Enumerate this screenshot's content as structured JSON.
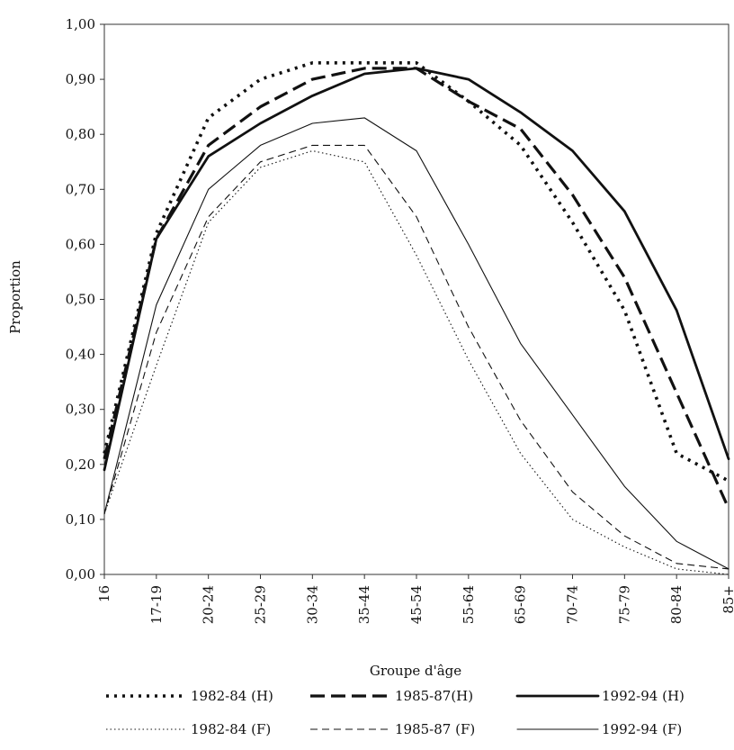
{
  "chart_data": {
    "type": "line",
    "title": "",
    "xlabel": "Groupe d'âge",
    "ylabel": "Proportion",
    "categories": [
      "16",
      "17-19",
      "20-24",
      "25-29",
      "30-34",
      "35-44",
      "45-54",
      "55-64",
      "65-69",
      "70-74",
      "75-79",
      "80-84",
      "85+"
    ],
    "ylim": [
      0,
      1
    ],
    "yticks": [
      "0,00",
      "0,10",
      "0,20",
      "0,30",
      "0,40",
      "0,50",
      "0,60",
      "0,70",
      "0,80",
      "0,90",
      "1,00"
    ],
    "grid": false,
    "legend_position": "bottom",
    "series": [
      {
        "name": "1982-84 (H)",
        "dash": "dotted-thick",
        "values": [
          0.22,
          0.62,
          0.83,
          0.9,
          0.93,
          0.93,
          0.93,
          0.86,
          0.78,
          0.64,
          0.48,
          0.22,
          0.17
        ]
      },
      {
        "name": "1985-87(H)",
        "dash": "dashed-thick",
        "values": [
          0.21,
          0.61,
          0.78,
          0.85,
          0.9,
          0.92,
          0.92,
          0.86,
          0.81,
          0.69,
          0.54,
          0.33,
          0.12
        ]
      },
      {
        "name": "1992-94 (H)",
        "dash": "solid-thick",
        "values": [
          0.19,
          0.61,
          0.76,
          0.82,
          0.87,
          0.91,
          0.92,
          0.9,
          0.84,
          0.77,
          0.66,
          0.48,
          0.21
        ]
      },
      {
        "name": "1982-84 (F)",
        "dash": "dotted-thin",
        "values": [
          0.11,
          0.38,
          0.64,
          0.74,
          0.77,
          0.75,
          0.58,
          0.39,
          0.22,
          0.1,
          0.05,
          0.01,
          0.0
        ]
      },
      {
        "name": "1985-87 (F)",
        "dash": "dashed-thin",
        "values": [
          0.11,
          0.44,
          0.65,
          0.75,
          0.78,
          0.78,
          0.65,
          0.45,
          0.28,
          0.15,
          0.07,
          0.02,
          0.01
        ]
      },
      {
        "name": "1992-94 (F)",
        "dash": "solid-thin",
        "values": [
          0.11,
          0.49,
          0.7,
          0.78,
          0.82,
          0.83,
          0.77,
          0.6,
          0.42,
          0.29,
          0.16,
          0.06,
          0.01
        ]
      }
    ]
  }
}
